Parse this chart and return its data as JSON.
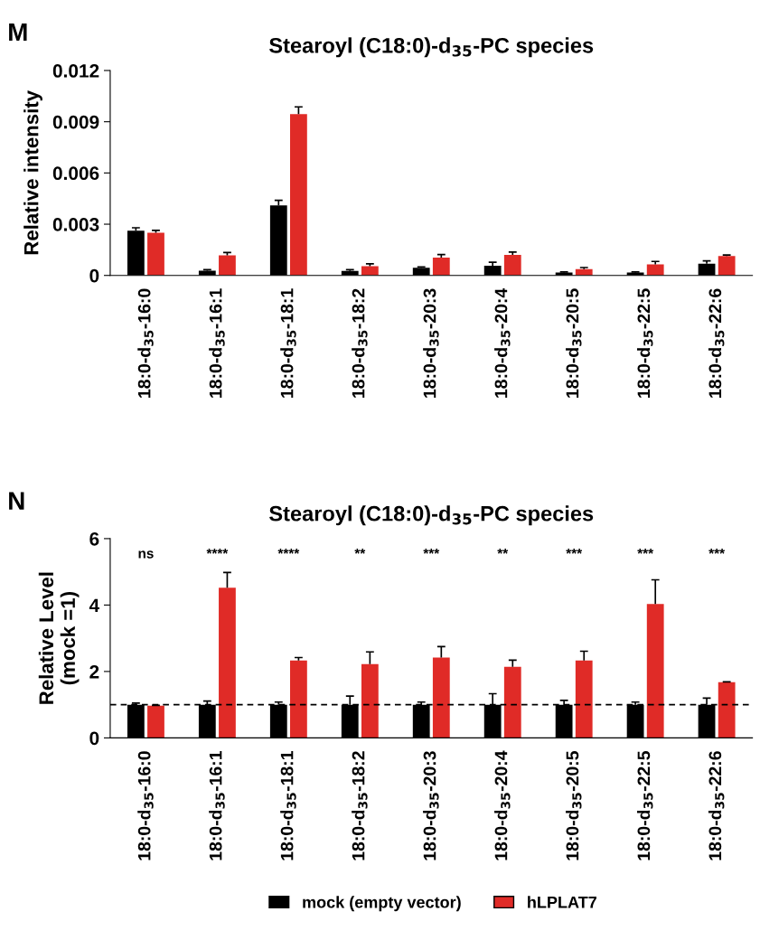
{
  "chart_data": [
    {
      "type": "bar",
      "title": "Stearoyl (C18:0)-d$_{35}$-PC species",
      "ylabel": "Relative intensity",
      "annotations": [
        "M"
      ],
      "categories": [
        "18:0-d$_{35}$-16:0",
        "18:0-d$_{35}$-16:1",
        "18:0-d$_{35}$-18:1",
        "18:0-d$_{35}$-18:2",
        "18:0-d$_{35}$-20:3",
        "18:0-d$_{35}$-20:4",
        "18:0-d$_{35}$-20:5",
        "18:0-d$_{35}$-22:5",
        "18:0-d$_{35}$-22:6"
      ],
      "series": [
        {
          "color": "#000000",
          "values": [
            0.00262,
            0.00028,
            0.0041,
            0.00026,
            0.00045,
            0.00057,
            0.00017,
            0.00017,
            0.00068
          ],
          "errors": [
            [
              0.00262,
              0.00279
            ],
            [
              0.00028,
              0.00034
            ],
            [
              0.0041,
              0.0044
            ],
            [
              0.00026,
              0.00034
            ],
            [
              0.00045,
              0.0005
            ],
            [
              0.00057,
              0.00077
            ],
            [
              0.00017,
              0.0002
            ],
            [
              0.00017,
              0.0002
            ],
            [
              0.00068,
              0.00085
            ]
          ]
        },
        {
          "color": "#e02b27",
          "values": [
            0.0025,
            0.00117,
            0.00944,
            0.00054,
            0.00105,
            0.0012,
            0.00037,
            0.00065,
            0.00114
          ],
          "errors": [
            [
              0.0025,
              0.00264
            ],
            [
              0.00117,
              0.00134
            ],
            [
              0.00944,
              0.00987
            ],
            [
              0.00054,
              0.00068
            ],
            [
              0.00105,
              0.00122
            ],
            [
              0.0012,
              0.00137
            ],
            [
              0.00037,
              0.00046
            ],
            [
              0.00065,
              0.00082
            ],
            [
              0.00114,
              0.0012
            ]
          ]
        }
      ],
      "ylim": [
        0,
        0.012
      ],
      "yticks": [
        0,
        0.003,
        0.006,
        0.009,
        0.012
      ],
      "grid": false
    },
    {
      "type": "bar",
      "title": "Stearoyl (C18:0)-d$_{35}$-PC species",
      "ylabel": "Relative Level\n(mock =1)",
      "annotations": [
        "N",
        "ns",
        "****",
        "****",
        "**",
        "***",
        "**",
        "***",
        "***",
        "***"
      ],
      "categories": [
        "18:0-d$_{35}$-16:0",
        "18:0-d$_{35}$-16:1",
        "18:0-d$_{35}$-18:1",
        "18:0-d$_{35}$-18:2",
        "18:0-d$_{35}$-20:3",
        "18:0-d$_{35}$-20:4",
        "18:0-d$_{35}$-20:5",
        "18:0-d$_{35}$-22:5",
        "18:0-d$_{35}$-22:6"
      ],
      "series": [
        {
          "name": "mock (empty vector)",
          "color": "#000000",
          "values": [
            1,
            1,
            1,
            1,
            1,
            1,
            1,
            1,
            1
          ],
          "errors": [
            [
              1,
              1.05
            ],
            [
              1,
              1.11
            ],
            [
              1,
              1.08
            ],
            [
              1,
              1.26
            ],
            [
              1,
              1.08
            ],
            [
              1,
              1.33
            ],
            [
              1,
              1.13
            ],
            [
              1,
              1.08
            ],
            [
              1,
              1.2
            ]
          ]
        },
        {
          "name": "hLPLAT7",
          "color": "#e02b27",
          "values": [
            0.97,
            4.52,
            2.33,
            2.22,
            2.42,
            2.14,
            2.33,
            4.03,
            1.68
          ],
          "errors": [
            [
              0.97,
              0.98
            ],
            [
              4.52,
              4.98
            ],
            [
              2.33,
              2.42
            ],
            [
              2.22,
              2.59
            ],
            [
              2.42,
              2.75
            ],
            [
              2.14,
              2.34
            ],
            [
              2.33,
              2.61
            ],
            [
              4.03,
              4.76
            ],
            [
              1.68,
              1.69
            ]
          ]
        }
      ],
      "ref_lines": [
        {
          "axis": "y",
          "value": 1,
          "color": "#000000",
          "line_style": "dashed"
        }
      ],
      "ylim": [
        0,
        6
      ],
      "yticks": [
        0,
        2,
        4,
        6
      ],
      "grid": false,
      "legend": "bottom"
    }
  ]
}
